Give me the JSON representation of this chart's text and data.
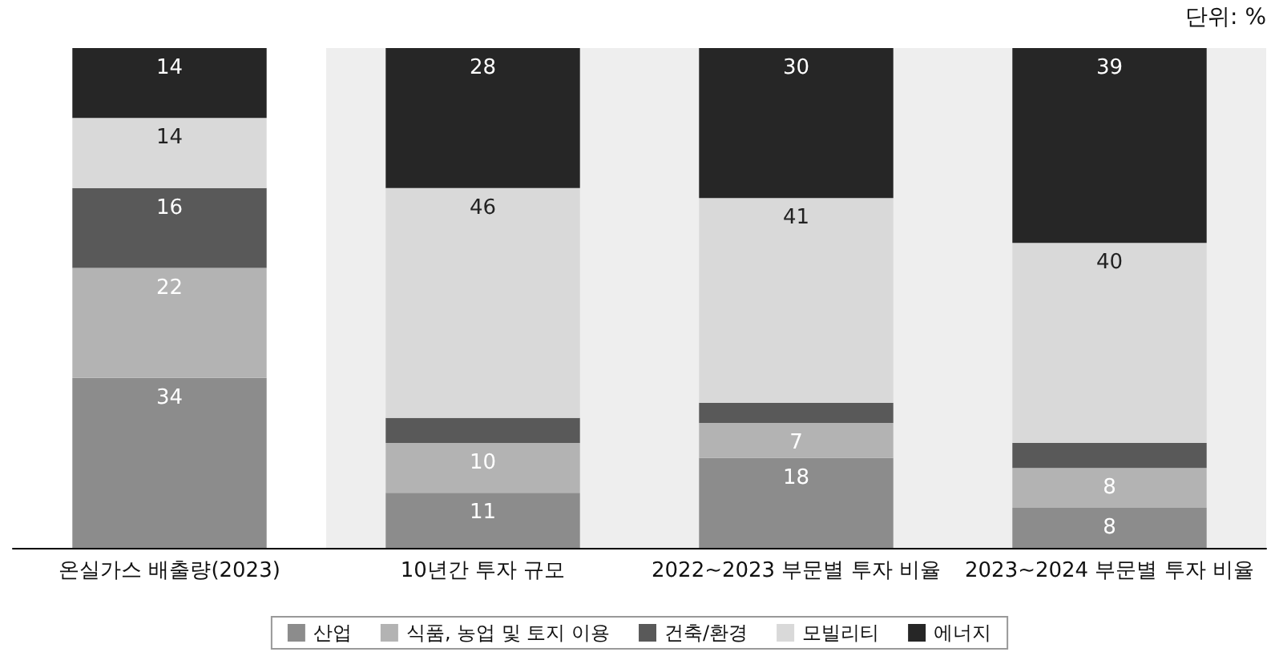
{
  "chart_data": {
    "type": "bar",
    "stacked": true,
    "categories": [
      "온실가스 배출량(2023)",
      "10년간 투자 규모",
      "2022~2023 부문별 투자 비율",
      "2023~2024 부문별 투자 비율"
    ],
    "series": [
      {
        "name": "산업",
        "color": "#8c8c8c",
        "values": [
          34,
          11,
          18,
          8
        ],
        "value_labels": [
          "34",
          "11",
          "18",
          "8"
        ]
      },
      {
        "name": "식품, 농업 및 토지 이용",
        "color": "#b3b3b3",
        "values": [
          22,
          10,
          7,
          8
        ],
        "value_labels": [
          "22",
          "10",
          "7",
          "8"
        ]
      },
      {
        "name": "건축/환경",
        "color": "#595959",
        "values": [
          16,
          5,
          4,
          5
        ],
        "value_labels": [
          "16",
          null,
          null,
          null
        ]
      },
      {
        "name": "모빌리티",
        "color": "#d9d9d9",
        "values": [
          14,
          46,
          41,
          40
        ],
        "value_labels": [
          "14",
          "46",
          "41",
          "40"
        ]
      },
      {
        "name": "에너지",
        "color": "#262626",
        "values": [
          14,
          28,
          30,
          39
        ],
        "value_labels": [
          "14",
          "28",
          "30",
          "39"
        ]
      }
    ],
    "ylim": [
      0,
      100
    ],
    "tick_labels": "x",
    "legend": "bottom",
    "bands": [
      {
        "axis": "x",
        "from": "10년간 투자 규모",
        "to": "2023~2024 부문별 투자 비율",
        "color": "#eeeeee"
      }
    ],
    "annotations": [
      "단위: %"
    ]
  }
}
